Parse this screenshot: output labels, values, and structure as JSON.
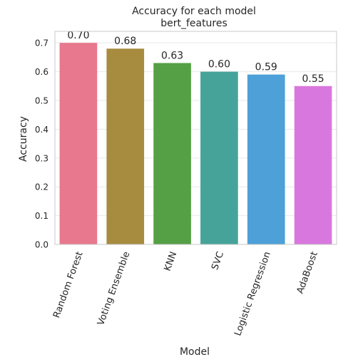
{
  "chart_data": {
    "type": "bar",
    "title": "Accuracy for each model",
    "subtitle": "bert_features",
    "xlabel": "Model",
    "ylabel": "Accuracy",
    "categories": [
      "Random Forest",
      "Voting Ensemble",
      "KNN",
      "SVC",
      "Logistic Regression",
      "AdaBoost"
    ],
    "values": [
      0.7,
      0.68,
      0.63,
      0.6,
      0.59,
      0.55
    ],
    "data_labels": [
      "0.70",
      "0.68",
      "0.63",
      "0.60",
      "0.59",
      "0.55"
    ],
    "colors": [
      "#e8788d",
      "#a78c40",
      "#55a045",
      "#45a39a",
      "#4da0d8",
      "#d878de"
    ],
    "ylim": [
      0,
      0.74
    ],
    "yticks": [
      0.0,
      0.1,
      0.2,
      0.3,
      0.4,
      0.5,
      0.6,
      0.7
    ],
    "ytick_labels": [
      "0.0",
      "0.1",
      "0.2",
      "0.3",
      "0.4",
      "0.5",
      "0.6",
      "0.7"
    ],
    "grid": true,
    "grid_color": "#e8e8e8",
    "frame_color": "#c8c8c8",
    "legend": "none"
  }
}
